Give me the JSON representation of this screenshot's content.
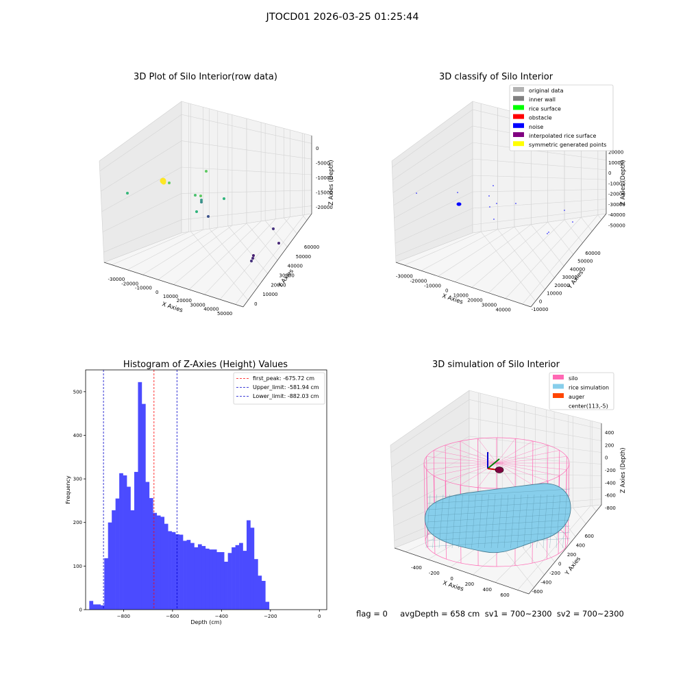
{
  "suptitle": "JTOCD01 2026-03-25 01:25:44",
  "stats_line": "flag = 0     avgDepth = 658 cm  sv1 = 700~2300  sv2 = 700~2300",
  "chart_data": [
    {
      "type": "scatter",
      "subtype": "3d",
      "title": "3D Plot of Silo Interior(row data)",
      "xlabel": "X Axies",
      "ylabel": "Y Axies",
      "zlabel": "Z Axies (Depth)",
      "xticks": [
        "-30000",
        "-20000",
        "-10000",
        "0",
        "10000",
        "20000",
        "30000",
        "40000",
        "50000"
      ],
      "yticks": [
        "0",
        "10000",
        "20000",
        "30000",
        "40000",
        "50000",
        "60000"
      ],
      "zticks": [
        "0",
        "-5000",
        "-10000",
        "-15000",
        "-20000"
      ],
      "xlim": [
        -35000,
        50000
      ],
      "ylim": [
        0,
        60000
      ],
      "zlim": [
        -22000,
        0
      ],
      "colormap": "viridis"
    },
    {
      "type": "scatter",
      "subtype": "3d",
      "title": "3D classify of Silo Interior",
      "xlabel": "X Axies",
      "ylabel": "Y Axies",
      "zlabel": "Z Axies (Depth)",
      "xticks": [
        "-30000",
        "-20000",
        "-10000",
        "0",
        "10000",
        "20000",
        "30000",
        "40000"
      ],
      "yticks": [
        "-10000",
        "0",
        "10000",
        "20000",
        "30000",
        "40000",
        "50000",
        "60000"
      ],
      "zticks": [
        "20000",
        "10000",
        "0",
        "-10000",
        "-20000",
        "-30000",
        "-40000",
        "-50000"
      ],
      "legend_position": "top-right",
      "legend": [
        {
          "label": "original data",
          "color": "#b2b2b2"
        },
        {
          "label": "inner wall",
          "color": "#808080"
        },
        {
          "label": "rice surface",
          "color": "#00ff00"
        },
        {
          "label": "obstacle",
          "color": "#ff0000"
        },
        {
          "label": "noise",
          "color": "#0000ff"
        },
        {
          "label": "interpolated rice surface",
          "color": "#800080"
        },
        {
          "label": "symmetric generated points",
          "color": "#ffff00"
        }
      ]
    },
    {
      "type": "bar",
      "subtype": "histogram",
      "title": "Histogram of Z-Axies (Height) Values",
      "xlabel": "Depth (cm)",
      "ylabel": "Frequency",
      "xlim": [
        -955,
        30
      ],
      "ylim": [
        0,
        550
      ],
      "xticks": [
        -800,
        -600,
        -400,
        -200,
        0
      ],
      "yticks": [
        0,
        100,
        200,
        300,
        400,
        500
      ],
      "bin_start": -940,
      "bin_width": 15.3,
      "values": [
        20,
        12,
        12,
        10,
        118,
        200,
        228,
        255,
        313,
        308,
        282,
        228,
        316,
        522,
        472,
        293,
        256,
        222,
        216,
        213,
        197,
        180,
        178,
        173,
        172,
        158,
        160,
        153,
        143,
        150,
        146,
        140,
        138,
        138,
        132,
        132,
        110,
        130,
        143,
        148,
        153,
        135,
        205,
        188,
        116,
        78,
        66,
        18
      ],
      "bar_color": "#4b4bff",
      "legend_position": "top-right",
      "lines": [
        {
          "label": "first_peak: -675.72 cm",
          "x": -675.72,
          "color": "#ff0000"
        },
        {
          "label": "Upper_limit: -581.94 cm",
          "x": -581.94,
          "color": "#0000cc"
        },
        {
          "label": "Lower_limit: -882.03 cm",
          "x": -882.03,
          "color": "#0000cc"
        }
      ]
    },
    {
      "type": "area",
      "subtype": "3d-surface",
      "title": "3D simulation of Silo Interior",
      "xlabel": "X Axies",
      "ylabel": "Y Axies",
      "zlabel": "Z Axies (Depth)",
      "xticks": [
        "-400",
        "-200",
        "0",
        "200",
        "400",
        "600"
      ],
      "yticks": [
        "-600",
        "-400",
        "-200",
        "0",
        "200",
        "400",
        "600"
      ],
      "zticks": [
        "400",
        "200",
        "0",
        "-200",
        "-400",
        "-600",
        "-800"
      ],
      "legend_position": "top-right",
      "legend": [
        {
          "label": "silo",
          "color": "#ff69b4"
        },
        {
          "label": "rice simulation",
          "color": "#87ceeb"
        },
        {
          "label": "auger",
          "color": "#ff4500"
        },
        {
          "label": "center(113,-5)",
          "color": "none"
        }
      ]
    }
  ]
}
